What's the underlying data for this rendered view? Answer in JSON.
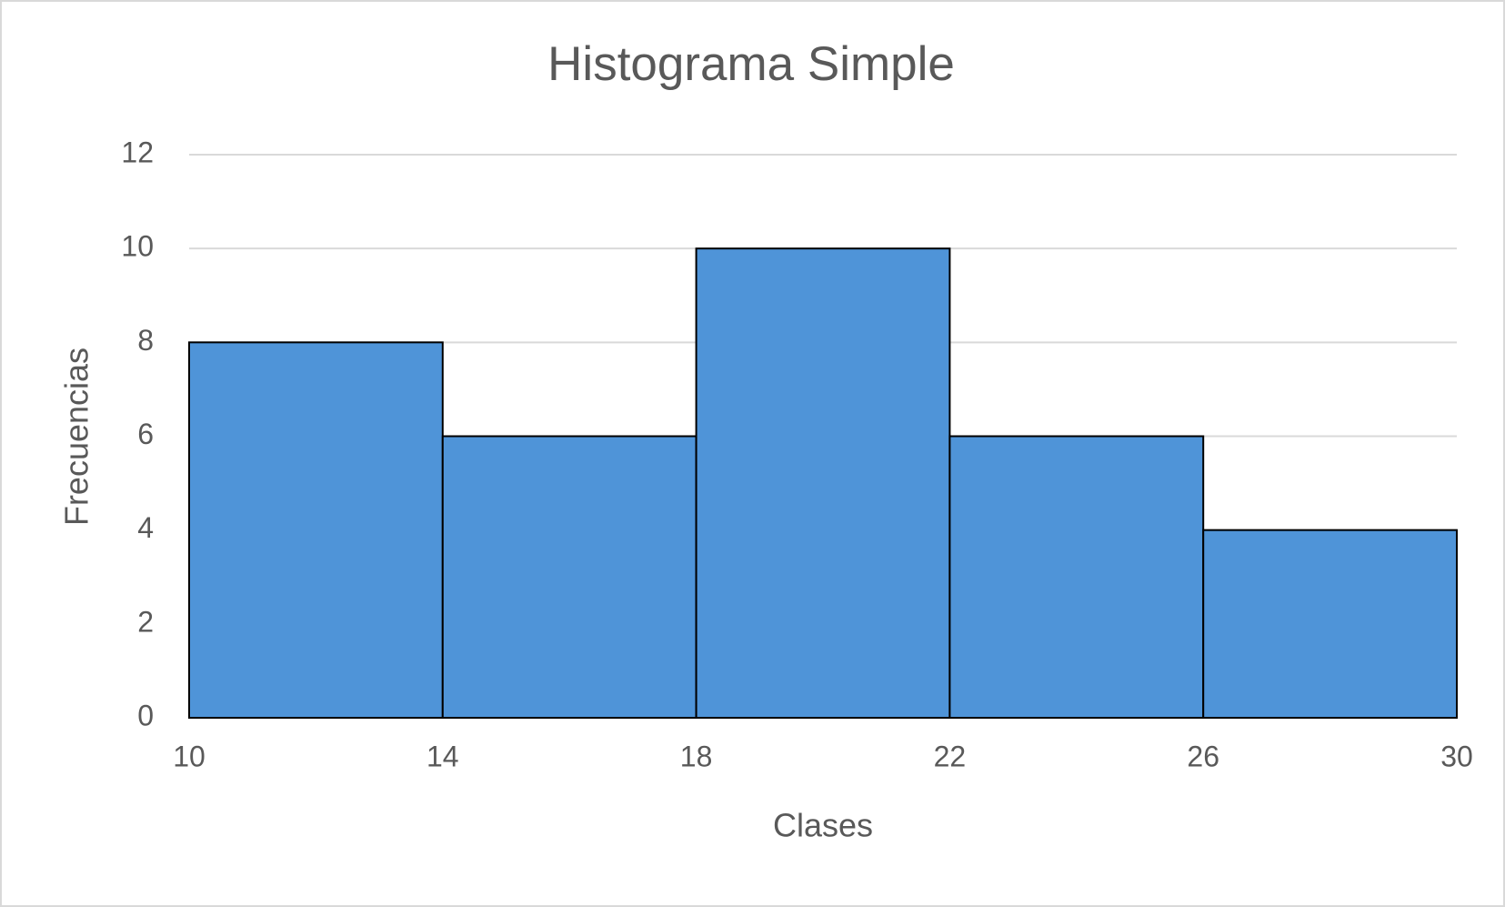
{
  "chart_data": {
    "type": "histogram",
    "title": "Histograma Simple",
    "x_label": "Clases",
    "y_label": "Frecuencias",
    "bins": [
      10,
      14,
      18,
      22,
      26,
      30
    ],
    "values": [
      8,
      6,
      10,
      6,
      4
    ],
    "color": "#4f94d8",
    "edgecolor": "#000000",
    "xlim": [
      10,
      30
    ],
    "xticks": [
      10,
      14,
      18,
      22,
      26,
      30
    ],
    "ylim": [
      0,
      12
    ],
    "yticks": [
      0,
      2,
      4,
      6,
      8,
      10,
      12
    ],
    "grid": true
  }
}
